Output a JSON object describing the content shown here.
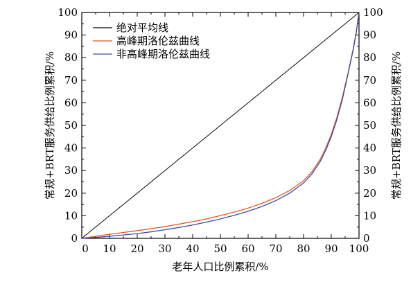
{
  "chart_data": {
    "type": "line",
    "title": "",
    "xlabel": "老年人口比例累积/%",
    "ylabel": "常规+BRT服务供给比例累积/%",
    "ylabel_right": "常规+BRT服务供给比例累积/%",
    "xlim": [
      0,
      100
    ],
    "ylim": [
      0,
      100
    ],
    "x_ticks": [
      0,
      10,
      20,
      30,
      40,
      50,
      60,
      70,
      80,
      90,
      100
    ],
    "y_ticks": [
      0,
      10,
      20,
      30,
      40,
      50,
      60,
      70,
      80,
      90,
      100
    ],
    "grid": false,
    "legend_position": "top-left",
    "series": [
      {
        "name": "绝对平均线",
        "color": "#000000",
        "x": [
          0,
          100
        ],
        "y": [
          0,
          100
        ]
      },
      {
        "name": "高峰期洛伦兹曲线",
        "color": "#e8541c",
        "x": [
          0,
          5,
          10,
          15,
          20,
          25,
          30,
          35,
          40,
          45,
          50,
          55,
          60,
          65,
          70,
          75,
          80,
          83,
          86,
          88,
          90,
          92,
          94,
          96,
          98,
          99,
          100
        ],
        "y": [
          0,
          0.9,
          1.8,
          2.6,
          3.4,
          4.3,
          5.2,
          6.3,
          7.4,
          8.6,
          10.1,
          11.6,
          13.4,
          15.5,
          18.0,
          21.2,
          25.5,
          29.5,
          35.0,
          40.0,
          46.0,
          53.5,
          62.5,
          73.0,
          84.5,
          91.5,
          100
        ]
      },
      {
        "name": "非高峰期洛伦兹曲线",
        "color": "#3c4aa8",
        "x": [
          0,
          5,
          10,
          15,
          20,
          25,
          30,
          35,
          40,
          45,
          50,
          55,
          60,
          65,
          70,
          75,
          80,
          83,
          86,
          88,
          90,
          92,
          94,
          96,
          98,
          99,
          100
        ],
        "y": [
          0,
          0.4,
          0.9,
          1.5,
          2.1,
          2.9,
          3.8,
          4.8,
          5.9,
          7.2,
          8.6,
          10.2,
          12.0,
          14.1,
          16.7,
          20.0,
          24.5,
          28.5,
          34.0,
          39.0,
          45.0,
          52.5,
          61.5,
          72.5,
          84.0,
          91.0,
          100
        ]
      }
    ]
  }
}
